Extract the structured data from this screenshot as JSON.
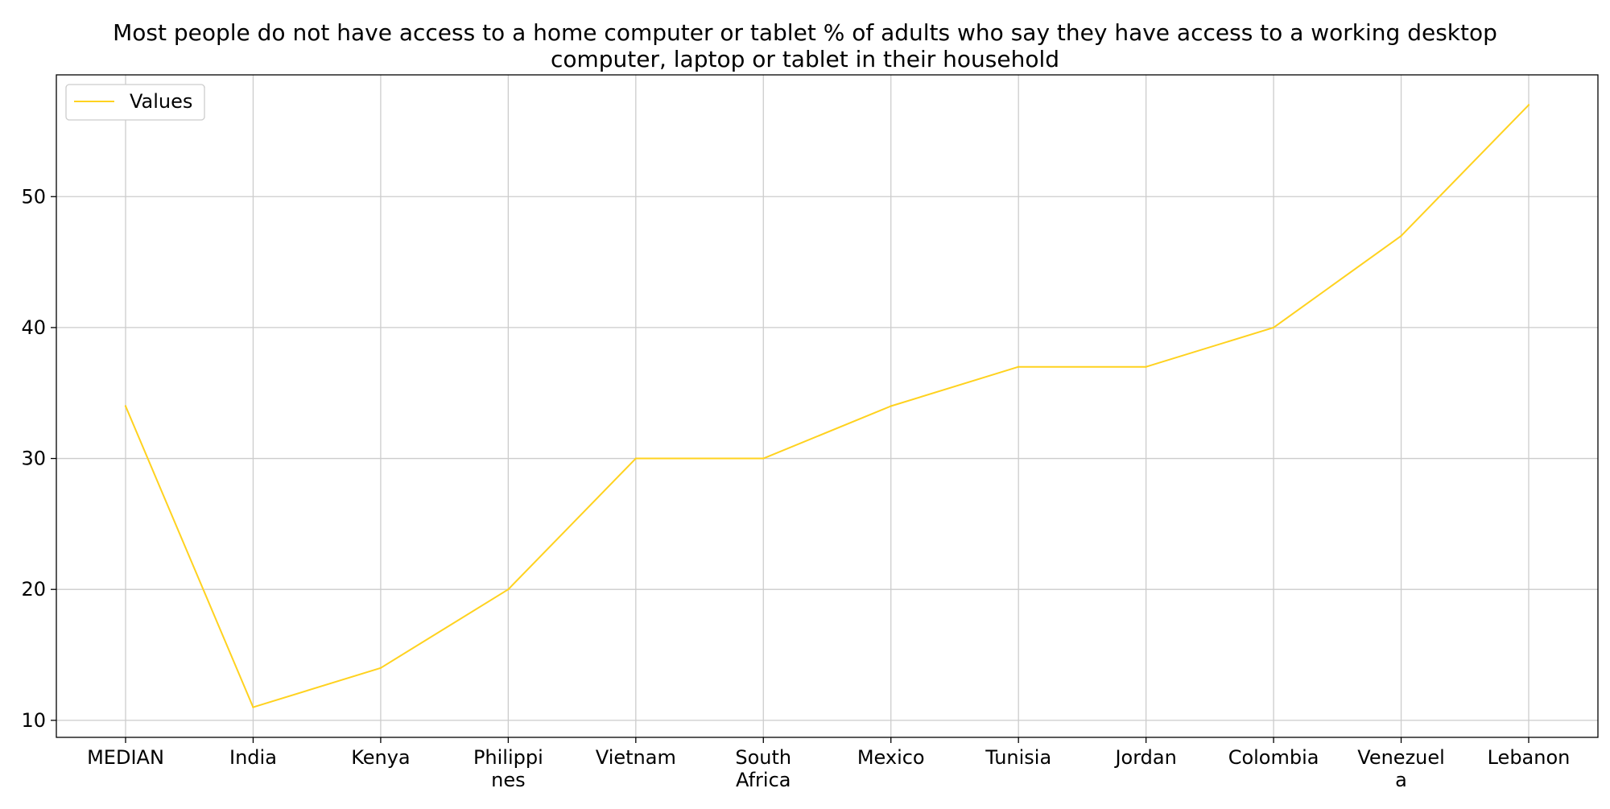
{
  "chart_data": {
    "type": "line",
    "title": "Most people do not have access to a home computer or tablet % of adults who say they have access to a working desktop computer, laptop or tablet in their household",
    "title_lines": [
      "Most people do not have access to a home computer or tablet % of adults who say they have access to a working desktop",
      "computer, laptop or tablet in their household"
    ],
    "xlabel": "",
    "ylabel": "",
    "categories": [
      "MEDIAN",
      "India",
      "Kenya",
      "Philippines",
      "Vietnam",
      "South Africa",
      "Mexico",
      "Tunisia",
      "Jordan",
      "Colombia",
      "Venezuela",
      "Lebanon"
    ],
    "category_label_lines": [
      [
        "MEDIAN"
      ],
      [
        "India"
      ],
      [
        "Kenya"
      ],
      [
        "Philippi",
        "nes"
      ],
      [
        "Vietnam"
      ],
      [
        "South",
        "Africa"
      ],
      [
        "Mexico"
      ],
      [
        "Tunisia"
      ],
      [
        "Jordan"
      ],
      [
        "Colombia"
      ],
      [
        "Venezuel",
        "a"
      ],
      [
        "Lebanon"
      ]
    ],
    "series": [
      {
        "name": "Values",
        "color": "#FFD21F",
        "values": [
          34,
          11,
          14,
          20,
          30,
          30,
          34,
          37,
          37,
          40,
          47,
          57
        ]
      }
    ],
    "ylim": [
      8.7,
      59.3
    ],
    "yticks": [
      10,
      20,
      30,
      40,
      50
    ],
    "grid": true,
    "legend": "top-left"
  }
}
